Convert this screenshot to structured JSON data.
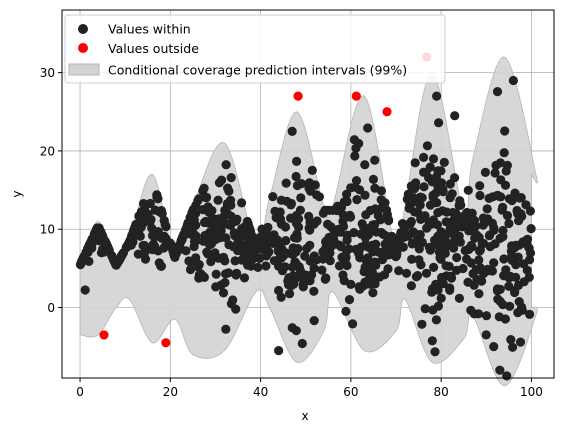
{
  "chart_data": {
    "type": "scatter",
    "title": "",
    "xlabel": "x",
    "ylabel": "y",
    "xlim": [
      -4,
      105
    ],
    "ylim": [
      -9,
      38
    ],
    "xticks": [
      0,
      20,
      40,
      60,
      80,
      100
    ],
    "yticks": [
      0,
      10,
      20,
      30
    ],
    "grid": true,
    "legend_position": "top-left",
    "legend": [
      {
        "label": "Values within",
        "marker": "circle",
        "color": "#222222"
      },
      {
        "label": "Values outside",
        "marker": "circle",
        "color": "#ff0000"
      },
      {
        "label": "Conditional coverage prediction intervals (99%)",
        "marker": "patch",
        "color": "#d3d3d3"
      }
    ],
    "interval_band": {
      "name": "Conditional coverage prediction intervals (99%)",
      "color": "#d3d3d3",
      "edge_color": "#b5b5b5",
      "x": [
        0,
        4,
        8,
        11,
        16,
        21,
        25,
        32,
        39,
        42,
        48,
        54,
        56,
        63,
        70,
        72,
        78,
        85,
        87,
        94,
        101,
        100
      ],
      "lower": [
        -3.5,
        -3.5,
        0,
        1,
        -4.5,
        -1.5,
        -6,
        -5.5,
        2,
        0,
        -7,
        -3,
        2,
        -5.5,
        -3,
        1,
        -7,
        -4,
        -1,
        -10,
        -1,
        0
      ],
      "upper": [
        6,
        11,
        6,
        9,
        17,
        7,
        13,
        21,
        8,
        14,
        25,
        13,
        13,
        27,
        7,
        13,
        30,
        12,
        19,
        32,
        17,
        17
      ]
    },
    "series": [
      {
        "name": "Values within",
        "color": "#222222",
        "mode": "generated",
        "count": 1000,
        "x_range": [
          0,
          100
        ],
        "center_y": 9,
        "extreme_points": [
          {
            "x": 93,
            "y": -8
          },
          {
            "x": 44,
            "y": -5.5
          },
          {
            "x": 83,
            "y": 24.5
          },
          {
            "x": 96,
            "y": 29
          },
          {
            "x": 79,
            "y": 27
          },
          {
            "x": 47,
            "y": 22.5
          }
        ]
      },
      {
        "name": "Values outside",
        "color": "#ff0000",
        "points": [
          {
            "x": 5.3,
            "y": -3.5
          },
          {
            "x": 19,
            "y": -4.5
          },
          {
            "x": 48.3,
            "y": 27
          },
          {
            "x": 61.2,
            "y": 27
          },
          {
            "x": 68,
            "y": 25
          },
          {
            "x": 76.8,
            "y": 32
          }
        ]
      }
    ]
  }
}
